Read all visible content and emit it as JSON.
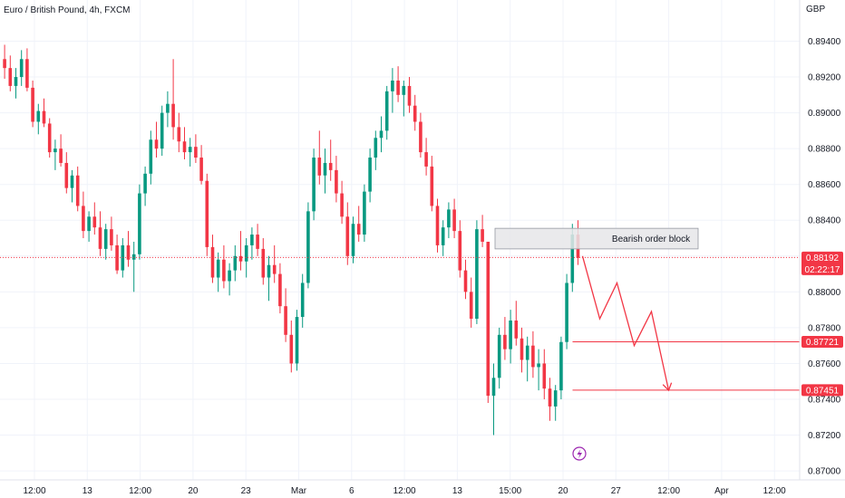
{
  "chart_data": {
    "type": "candlestick",
    "title": "Euro / British Pound, 4h, FXCM",
    "currency": "GBP",
    "ylim": [
      0.8695,
      0.8963
    ],
    "y_ticks": [
      "0.89400",
      "0.89200",
      "0.89000",
      "0.88800",
      "0.88600",
      "0.88400",
      "0.88200",
      "0.88000",
      "0.87800",
      "0.87600",
      "0.87400",
      "0.87200",
      "0.87000"
    ],
    "x_ticks": [
      "12:00",
      "13",
      "12:00",
      "20",
      "23",
      "Mar",
      "6",
      "12:00",
      "13",
      "15:00",
      "20",
      "27",
      "12:00",
      "Apr",
      "12:00"
    ],
    "colors": {
      "up": "#089981",
      "down": "#f23645",
      "line": "#f23645",
      "zone_fill": "#e6e6e9",
      "zone_border": "#9598a1"
    },
    "current_price": {
      "value": 0.88192,
      "label": "0.88192",
      "countdown": "02:22:17"
    },
    "levels": [
      {
        "value": 0.87721,
        "label": "0.87721"
      },
      {
        "value": 0.87451,
        "label": "0.87451"
      }
    ],
    "zone": {
      "label": "Bearish order block",
      "top": 0.88355,
      "bottom": 0.8824
    },
    "projection_path": [
      0.882,
      0.8785,
      0.8805,
      0.877,
      0.8789,
      0.8745
    ],
    "candles": [
      [
        0.893,
        0.8938,
        0.8919,
        0.8925
      ],
      [
        0.8925,
        0.8932,
        0.8912,
        0.8915
      ],
      [
        0.8915,
        0.8925,
        0.8908,
        0.892
      ],
      [
        0.892,
        0.8935,
        0.8915,
        0.893
      ],
      [
        0.893,
        0.8936,
        0.8912,
        0.8914
      ],
      [
        0.8914,
        0.8918,
        0.8892,
        0.8895
      ],
      [
        0.8895,
        0.8905,
        0.8888,
        0.8901
      ],
      [
        0.8901,
        0.8908,
        0.8892,
        0.8894
      ],
      [
        0.8894,
        0.8897,
        0.8875,
        0.8878
      ],
      [
        0.8878,
        0.8885,
        0.8868,
        0.888
      ],
      [
        0.888,
        0.8888,
        0.887,
        0.8872
      ],
      [
        0.8872,
        0.8878,
        0.8855,
        0.8858
      ],
      [
        0.8858,
        0.8868,
        0.885,
        0.8865
      ],
      [
        0.8865,
        0.887,
        0.8845,
        0.8848
      ],
      [
        0.8848,
        0.8856,
        0.883,
        0.8834
      ],
      [
        0.8834,
        0.8845,
        0.8828,
        0.8842
      ],
      [
        0.8842,
        0.885,
        0.8832,
        0.8836
      ],
      [
        0.8836,
        0.8845,
        0.882,
        0.8824
      ],
      [
        0.8824,
        0.8838,
        0.8818,
        0.8835
      ],
      [
        0.8835,
        0.8842,
        0.8823,
        0.8826
      ],
      [
        0.8826,
        0.8832,
        0.881,
        0.8812
      ],
      [
        0.8812,
        0.883,
        0.8808,
        0.8826
      ],
      [
        0.8826,
        0.8834,
        0.8814,
        0.8818
      ],
      [
        0.8818,
        0.8828,
        0.88,
        0.8821
      ],
      [
        0.8821,
        0.886,
        0.8818,
        0.8855
      ],
      [
        0.8855,
        0.887,
        0.8848,
        0.8866
      ],
      [
        0.8866,
        0.889,
        0.886,
        0.8885
      ],
      [
        0.8885,
        0.8895,
        0.8875,
        0.888
      ],
      [
        0.888,
        0.8904,
        0.8876,
        0.89
      ],
      [
        0.89,
        0.8912,
        0.8892,
        0.8905
      ],
      [
        0.8905,
        0.893,
        0.8885,
        0.8892
      ],
      [
        0.8892,
        0.89,
        0.8878,
        0.8884
      ],
      [
        0.8884,
        0.8892,
        0.8874,
        0.8878
      ],
      [
        0.8878,
        0.8886,
        0.887,
        0.8881
      ],
      [
        0.8881,
        0.8888,
        0.8872,
        0.8875
      ],
      [
        0.8875,
        0.8882,
        0.886,
        0.8862
      ],
      [
        0.8862,
        0.8866,
        0.882,
        0.8825
      ],
      [
        0.8825,
        0.8832,
        0.8805,
        0.8808
      ],
      [
        0.8808,
        0.8822,
        0.88,
        0.8818
      ],
      [
        0.8818,
        0.8826,
        0.8802,
        0.8806
      ],
      [
        0.8806,
        0.8816,
        0.8798,
        0.8812
      ],
      [
        0.8812,
        0.8826,
        0.8806,
        0.882
      ],
      [
        0.882,
        0.8834,
        0.8812,
        0.8817
      ],
      [
        0.8817,
        0.883,
        0.8808,
        0.8826
      ],
      [
        0.8826,
        0.8836,
        0.8818,
        0.8832
      ],
      [
        0.8832,
        0.8838,
        0.882,
        0.8824
      ],
      [
        0.8824,
        0.883,
        0.8804,
        0.8808
      ],
      [
        0.8808,
        0.882,
        0.8795,
        0.8815
      ],
      [
        0.8815,
        0.8826,
        0.8805,
        0.881
      ],
      [
        0.881,
        0.8816,
        0.8788,
        0.8792
      ],
      [
        0.8792,
        0.8802,
        0.8772,
        0.8776
      ],
      [
        0.8776,
        0.8784,
        0.8755,
        0.876
      ],
      [
        0.876,
        0.879,
        0.8756,
        0.8786
      ],
      [
        0.8786,
        0.881,
        0.878,
        0.8805
      ],
      [
        0.8805,
        0.885,
        0.8802,
        0.8845
      ],
      [
        0.8845,
        0.888,
        0.884,
        0.8875
      ],
      [
        0.8875,
        0.889,
        0.886,
        0.8865
      ],
      [
        0.8865,
        0.888,
        0.8855,
        0.8872
      ],
      [
        0.8872,
        0.8885,
        0.8862,
        0.8868
      ],
      [
        0.8868,
        0.8876,
        0.885,
        0.8855
      ],
      [
        0.8855,
        0.8862,
        0.8838,
        0.8842
      ],
      [
        0.8842,
        0.885,
        0.8815,
        0.882
      ],
      [
        0.882,
        0.8842,
        0.8816,
        0.8838
      ],
      [
        0.8838,
        0.8848,
        0.8828,
        0.8832
      ],
      [
        0.8832,
        0.886,
        0.8828,
        0.8856
      ],
      [
        0.8856,
        0.888,
        0.885,
        0.8875
      ],
      [
        0.8875,
        0.889,
        0.8868,
        0.8886
      ],
      [
        0.8886,
        0.8898,
        0.8878,
        0.889
      ],
      [
        0.889,
        0.8915,
        0.8885,
        0.8912
      ],
      [
        0.8912,
        0.8925,
        0.89,
        0.8918
      ],
      [
        0.8918,
        0.8926,
        0.8906,
        0.891
      ],
      [
        0.891,
        0.8918,
        0.8898,
        0.8915
      ],
      [
        0.8915,
        0.892,
        0.89,
        0.8904
      ],
      [
        0.8904,
        0.891,
        0.889,
        0.8895
      ],
      [
        0.8895,
        0.89,
        0.8875,
        0.8878
      ],
      [
        0.8878,
        0.8886,
        0.8865,
        0.887
      ],
      [
        0.887,
        0.8876,
        0.8845,
        0.8848
      ],
      [
        0.8848,
        0.8852,
        0.8822,
        0.8826
      ],
      [
        0.8826,
        0.884,
        0.882,
        0.8836
      ],
      [
        0.8836,
        0.885,
        0.883,
        0.8846
      ],
      [
        0.8846,
        0.8852,
        0.883,
        0.8834
      ],
      [
        0.8834,
        0.884,
        0.8808,
        0.8812
      ],
      [
        0.8812,
        0.8818,
        0.8796,
        0.88
      ],
      [
        0.88,
        0.8808,
        0.878,
        0.8785
      ],
      [
        0.8785,
        0.884,
        0.8782,
        0.8835
      ],
      [
        0.8835,
        0.8843,
        0.8825,
        0.8828
      ],
      [
        0.8828,
        0.8828,
        0.8738,
        0.8742
      ],
      [
        0.8742,
        0.876,
        0.872,
        0.8752
      ],
      [
        0.8752,
        0.878,
        0.8746,
        0.8776
      ],
      [
        0.8776,
        0.8786,
        0.8762,
        0.8768
      ],
      [
        0.8768,
        0.879,
        0.876,
        0.8784
      ],
      [
        0.8784,
        0.8795,
        0.877,
        0.8774
      ],
      [
        0.8774,
        0.878,
        0.8755,
        0.8762
      ],
      [
        0.8762,
        0.8775,
        0.875,
        0.877
      ],
      [
        0.877,
        0.8778,
        0.8752,
        0.8758
      ],
      [
        0.8758,
        0.8768,
        0.8745,
        0.876
      ],
      [
        0.876,
        0.8768,
        0.874,
        0.8746
      ],
      [
        0.8746,
        0.8752,
        0.8728,
        0.8736
      ],
      [
        0.8736,
        0.8748,
        0.8728,
        0.8745
      ],
      [
        0.8745,
        0.8775,
        0.874,
        0.8772
      ],
      [
        0.8772,
        0.881,
        0.8768,
        0.8805
      ],
      [
        0.8805,
        0.8838,
        0.88,
        0.8832
      ],
      [
        0.8832,
        0.884,
        0.8815,
        0.8819
      ]
    ]
  }
}
